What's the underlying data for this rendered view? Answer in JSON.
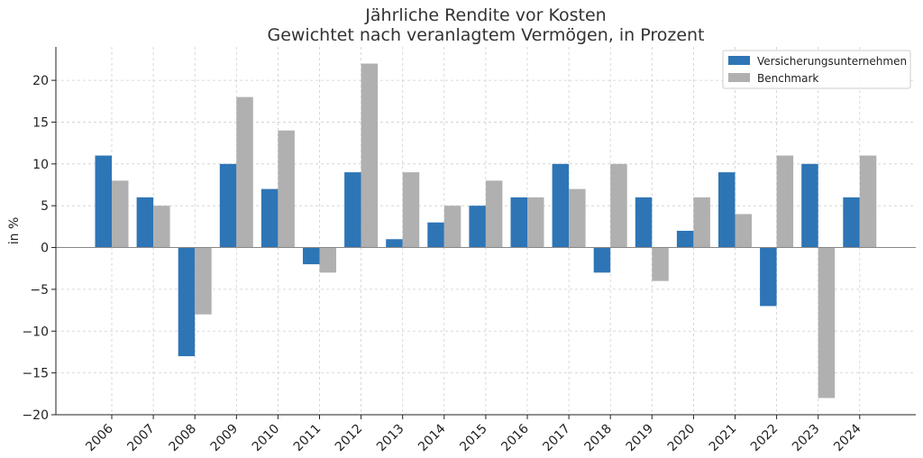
{
  "chart_data": {
    "type": "bar",
    "title": "Jährliche Rendite vor Kosten",
    "subtitle": "Gewichtet nach veranlagtem Vermögen, in Prozent",
    "xlabel": "",
    "ylabel": "in %",
    "categories": [
      "2006",
      "2007",
      "2008",
      "2009",
      "2010",
      "2011",
      "2012",
      "2013",
      "2014",
      "2015",
      "2016",
      "2017",
      "2018",
      "2019",
      "2020",
      "2021",
      "2022",
      "2023",
      "2024"
    ],
    "series": [
      {
        "name": "Versicherungsunternehmen",
        "color": "#2e75b6",
        "values": [
          11,
          6,
          -13,
          10,
          7,
          -2,
          9,
          1,
          3,
          5,
          6,
          10,
          -3,
          6,
          2,
          9,
          -7,
          10,
          6
        ]
      },
      {
        "name": "Benchmark",
        "color": "#b0b0b0",
        "values": [
          8,
          5,
          -8,
          18,
          14,
          -3,
          22,
          9,
          5,
          8,
          6,
          7,
          10,
          -4,
          6,
          4,
          11,
          -18,
          11
        ]
      }
    ],
    "ylim": [
      -20,
      24
    ],
    "yticks": [
      -20,
      -15,
      -10,
      -5,
      0,
      5,
      10,
      15,
      20
    ],
    "ytick_labels": [
      "−20",
      "−15",
      "−10",
      "−5",
      "0",
      "5",
      "10",
      "15",
      "20"
    ],
    "grid": true,
    "legend_position": "top-right"
  }
}
